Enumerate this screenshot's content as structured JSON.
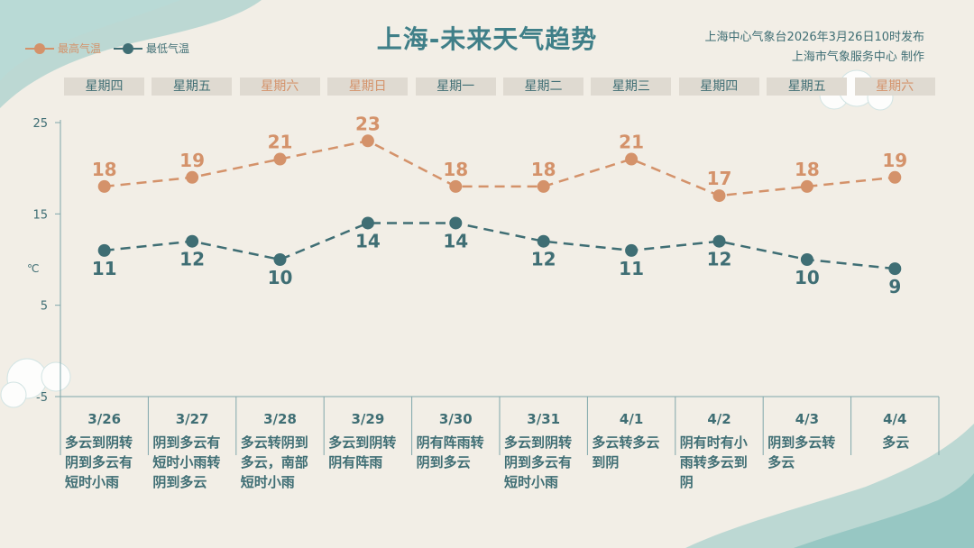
{
  "title": "上海-未来天气趋势",
  "publisher": {
    "line1": "上海中心气象台2026年3月26日10时发布",
    "line2": "上海市气象服务中心  制作"
  },
  "legend": {
    "high": "最高气温",
    "low": "最低气温"
  },
  "colors": {
    "high": "#d4926a",
    "low": "#3f6e74",
    "title": "#3f7f88",
    "background": "#f2eee6",
    "weekday_bg": "#dfdad1"
  },
  "chart_data": {
    "type": "line",
    "title": "上海-未来天气趋势",
    "ylabel": "℃",
    "ylim": [
      -5,
      25
    ],
    "yticks": [
      25,
      15,
      5,
      -5
    ],
    "grid": false,
    "legend_position": "top-left",
    "categories": [
      "3/26",
      "3/27",
      "3/28",
      "3/29",
      "3/30",
      "3/31",
      "4/1",
      "4/2",
      "4/3",
      "4/4"
    ],
    "weekdays": [
      "星期四",
      "星期五",
      "星期六",
      "星期日",
      "星期一",
      "星期二",
      "星期三",
      "星期四",
      "星期五",
      "星期六"
    ],
    "weekend": [
      false,
      false,
      true,
      true,
      false,
      false,
      false,
      false,
      false,
      true
    ],
    "series": [
      {
        "name": "最高气温",
        "values": [
          18,
          19,
          21,
          23,
          18,
          18,
          21,
          17,
          18,
          19
        ],
        "color": "#d4926a"
      },
      {
        "name": "最低气温",
        "values": [
          11,
          12,
          10,
          14,
          14,
          12,
          11,
          12,
          10,
          9
        ],
        "color": "#3f6e74"
      }
    ],
    "descriptions": [
      "多云到阴转阴到多云有短时小雨",
      "阴到多云有短时小雨转阴到多云",
      "多云转阴到多云，南部短时小雨",
      "多云到阴转阴有阵雨",
      "阴有阵雨转阴到多云",
      "多云到阴转阴到多云有短时小雨",
      "多云转多云到阴",
      "阴有时有小雨转多云到阴",
      "阴到多云转多云",
      "多云"
    ]
  }
}
